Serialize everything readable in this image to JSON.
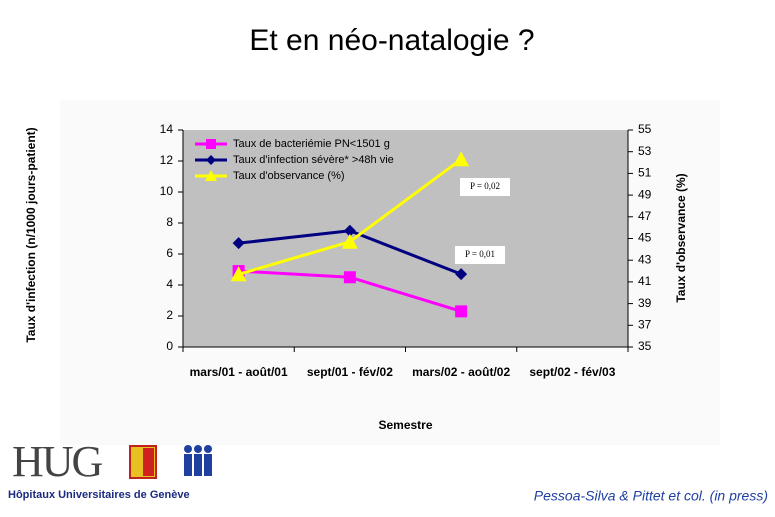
{
  "slide_title": "Et en néo-natalogie ?",
  "logo": {
    "name": "HUG",
    "subtitle": "Hôpitaux Universitaires de Genève"
  },
  "citation": "Pessoa-Silva & Pittet et col.  (in press)",
  "chart_data": {
    "type": "line",
    "categories": [
      "mars/01 - août/01",
      "sept/01 - fév/02",
      "mars/02 - août/02",
      "sept/02 - fév/03"
    ],
    "series": [
      {
        "name": "Taux de bacteriémie PN<1501 g",
        "color": "#ff00ff",
        "marker": "square",
        "values": [
          4.9,
          4.5,
          2.3,
          null
        ]
      },
      {
        "name": "Taux  d'infection sévère* >48h vie",
        "color": "#000080",
        "marker": "diamond",
        "values": [
          6.7,
          7.5,
          4.7,
          null
        ]
      },
      {
        "name": "Taux d'observance (%)",
        "color": "#ffff00",
        "marker": "triangle",
        "axis": "y2",
        "values": [
          41.7,
          44.7,
          52.3,
          null
        ]
      }
    ],
    "xlabel": "Semestre",
    "ylabel": "Taux d'infection (n/1000 jours-patient)",
    "y2label": "Taux d'observance (%)",
    "ylim": [
      0,
      14
    ],
    "yticks": [
      0,
      2,
      4,
      6,
      8,
      10,
      12,
      14
    ],
    "y2lim": [
      35,
      55
    ],
    "y2ticks": [
      35,
      37,
      39,
      41,
      43,
      45,
      47,
      49,
      51,
      53,
      55
    ],
    "annotations": [
      "P = 0,02",
      "P = 0,01"
    ],
    "legend": "upper left",
    "background": "#c0c0c0"
  }
}
